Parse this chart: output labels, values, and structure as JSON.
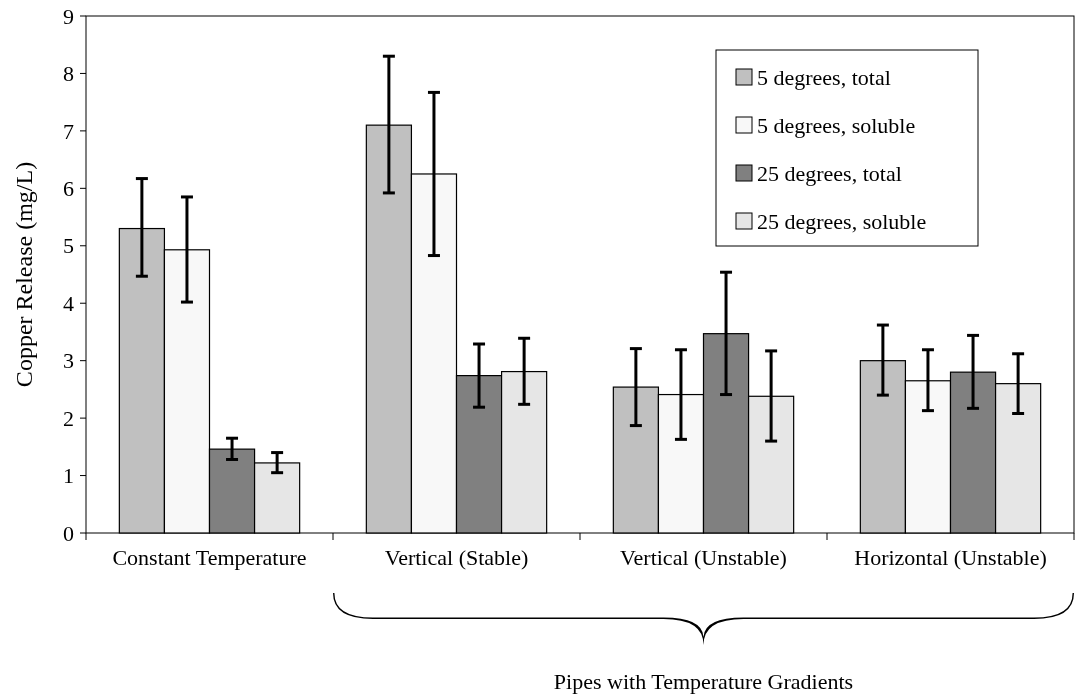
{
  "chart_data": {
    "type": "bar",
    "ylabel": "Copper Release  (mg/L)",
    "categories": [
      "Constant Temperature",
      "Vertical (Stable)",
      "Vertical (Unstable)",
      "Horizontal (Unstable)"
    ],
    "series": [
      {
        "name": "5 degrees, total",
        "color": "#c0c0c0",
        "values": [
          5.3,
          7.1,
          2.54,
          3.0
        ],
        "errors": [
          [
            4.47,
            6.17
          ],
          [
            5.92,
            8.3
          ],
          [
            1.87,
            3.21
          ],
          [
            2.4,
            3.62
          ]
        ]
      },
      {
        "name": "5 degrees, soluble",
        "color": "#f8f8f8",
        "values": [
          4.93,
          6.25,
          2.41,
          2.65
        ],
        "errors": [
          [
            4.02,
            5.85
          ],
          [
            4.83,
            7.67
          ],
          [
            1.63,
            3.19
          ],
          [
            2.13,
            3.19
          ]
        ]
      },
      {
        "name": "25 degrees, total",
        "color": "#808080",
        "values": [
          1.46,
          2.74,
          3.47,
          2.8
        ],
        "errors": [
          [
            1.28,
            1.65
          ],
          [
            2.19,
            3.29
          ],
          [
            2.41,
            4.54
          ],
          [
            2.17,
            3.44
          ]
        ]
      },
      {
        "name": "25 degrees, soluble",
        "color": "#e6e6e6",
        "values": [
          1.22,
          2.81,
          2.38,
          2.6
        ],
        "errors": [
          [
            1.05,
            1.4
          ],
          [
            2.24,
            3.39
          ],
          [
            1.6,
            3.17
          ],
          [
            2.08,
            3.12
          ]
        ]
      }
    ],
    "ylim": [
      0,
      9
    ],
    "yticks": [
      0,
      1,
      2,
      3,
      4,
      5,
      6,
      7,
      8,
      9
    ],
    "grid": false,
    "legend": "top right",
    "annotations": [
      "Pipes with Temperature Gradients"
    ]
  }
}
